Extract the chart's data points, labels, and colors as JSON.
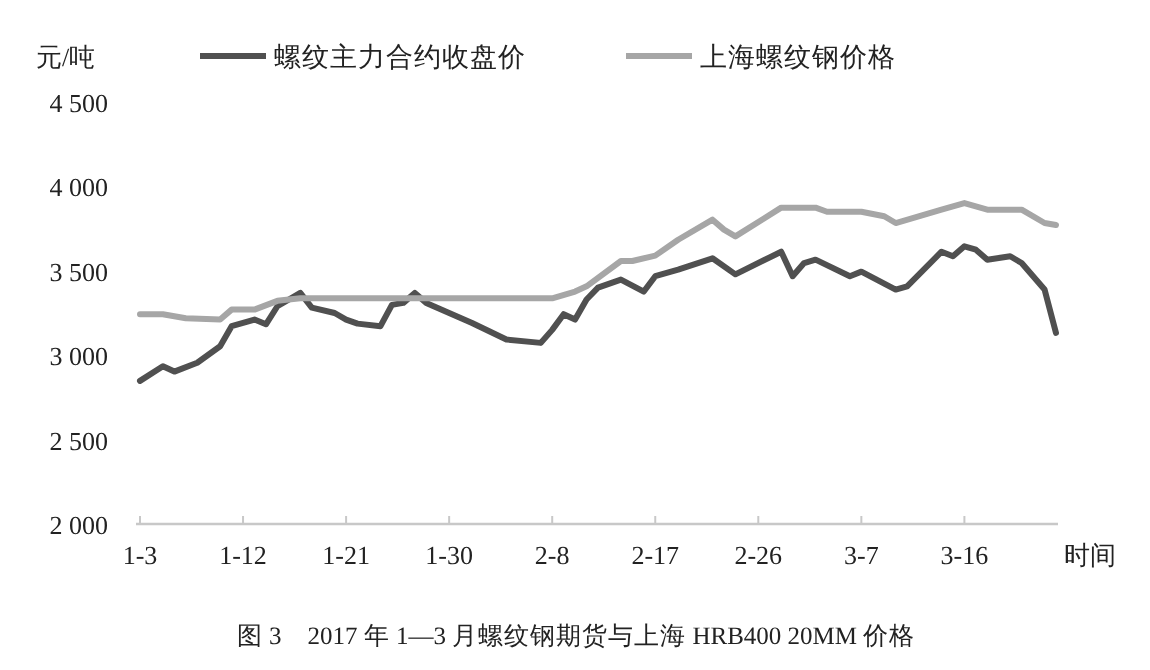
{
  "chart_data": {
    "type": "line",
    "ylabel": "元/吨",
    "xlabel": "时间",
    "legend": "top",
    "grid": false,
    "line_style": "solid",
    "marker": "none",
    "annotations": [
      "图 3　2017 年 1—3 月螺纹钢期货与上海 HRB400 20MM 价格"
    ],
    "xlim": [
      "2017-01-03",
      "2017-03-24"
    ],
    "xticks": [
      {
        "value": "2017-01-03",
        "label": "1-3"
      },
      {
        "value": "2017-01-12",
        "label": "1-12"
      },
      {
        "value": "2017-01-21",
        "label": "1-21"
      },
      {
        "value": "2017-01-30",
        "label": "1-30"
      },
      {
        "value": "2017-02-08",
        "label": "2-8"
      },
      {
        "value": "2017-02-17",
        "label": "2-17"
      },
      {
        "value": "2017-02-26",
        "label": "2-26"
      },
      {
        "value": "2017-03-07",
        "label": "3-7"
      },
      {
        "value": "2017-03-16",
        "label": "3-16"
      }
    ],
    "ylim": [
      2000,
      4500
    ],
    "yticks": [
      {
        "value": 2000,
        "label": "2 000"
      },
      {
        "value": 2500,
        "label": "2 500"
      },
      {
        "value": 3000,
        "label": "3 000"
      },
      {
        "value": 3500,
        "label": "3 500"
      },
      {
        "value": 4000,
        "label": "4 000"
      },
      {
        "value": 4500,
        "label": "4 500"
      }
    ],
    "series": [
      {
        "name": "螺纹主力合约收盘价",
        "color": "#505050",
        "x": [
          "2017-01-03",
          "2017-01-05",
          "2017-01-06",
          "2017-01-08",
          "2017-01-10",
          "2017-01-11",
          "2017-01-12",
          "2017-01-13",
          "2017-01-14",
          "2017-01-15",
          "2017-01-17",
          "2017-01-18",
          "2017-01-20",
          "2017-01-21",
          "2017-01-22",
          "2017-01-24",
          "2017-01-25",
          "2017-01-26",
          "2017-01-27",
          "2017-01-28",
          "2017-02-01",
          "2017-02-04",
          "2017-02-07",
          "2017-02-08",
          "2017-02-09",
          "2017-02-10",
          "2017-02-11",
          "2017-02-12",
          "2017-02-14",
          "2017-02-16",
          "2017-02-17",
          "2017-02-19",
          "2017-02-22",
          "2017-02-24",
          "2017-02-28",
          "2017-03-01",
          "2017-03-02",
          "2017-03-03",
          "2017-03-06",
          "2017-03-07",
          "2017-03-10",
          "2017-03-11",
          "2017-03-14",
          "2017-03-15",
          "2017-03-16",
          "2017-03-17",
          "2017-03-18",
          "2017-03-20",
          "2017-03-21",
          "2017-03-22",
          "2017-03-23",
          "2017-03-24"
        ],
        "values": [
          2848,
          2935,
          2903,
          2955,
          3053,
          3172,
          3191,
          3211,
          3183,
          3290,
          3369,
          3282,
          3250,
          3211,
          3187,
          3172,
          3298,
          3310,
          3369,
          3310,
          3191,
          3093,
          3073,
          3150,
          3243,
          3211,
          3330,
          3400,
          3448,
          3377,
          3468,
          3507,
          3574,
          3479,
          3613,
          3468,
          3546,
          3566,
          3468,
          3495,
          3389,
          3408,
          3613,
          3586,
          3645,
          3625,
          3566,
          3586,
          3546,
          3468,
          3389,
          3132
        ]
      },
      {
        "name": "上海螺纹钢价格",
        "color": "#a6a6a6",
        "x": [
          "2017-01-03",
          "2017-01-05",
          "2017-01-07",
          "2017-01-10",
          "2017-01-11",
          "2017-01-13",
          "2017-01-15",
          "2017-01-17",
          "2017-02-08",
          "2017-02-10",
          "2017-02-11",
          "2017-02-14",
          "2017-02-15",
          "2017-02-17",
          "2017-02-19",
          "2017-02-22",
          "2017-02-23",
          "2017-02-24",
          "2017-02-28",
          "2017-03-03",
          "2017-03-04",
          "2017-03-07",
          "2017-03-09",
          "2017-03-10",
          "2017-03-14",
          "2017-03-16",
          "2017-03-18",
          "2017-03-21",
          "2017-03-23",
          "2017-03-24"
        ],
        "values": [
          3243,
          3243,
          3219,
          3211,
          3270,
          3270,
          3322,
          3337,
          3337,
          3377,
          3408,
          3558,
          3558,
          3590,
          3684,
          3803,
          3744,
          3704,
          3874,
          3874,
          3850,
          3850,
          3823,
          3783,
          3862,
          3901,
          3862,
          3862,
          3783,
          3771
        ]
      }
    ]
  }
}
